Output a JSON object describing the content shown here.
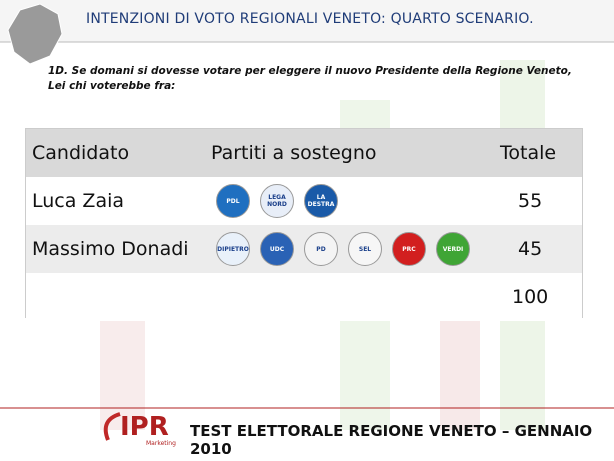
{
  "header": {
    "title": "INTENZIONI DI VOTO REGIONALI VENETO: QUARTO SCENARIO."
  },
  "question": [
    "1D. Se domani si dovesse votare per eleggere il nuovo Presidente della Regione Veneto,",
    "Lei chi voterebbe fra:"
  ],
  "table": {
    "columns": [
      "Candidato",
      "Partiti a sostegno",
      "Totale"
    ],
    "rows": [
      {
        "candidate": "Luca Zaia",
        "parties": [
          {
            "label": "PDL",
            "color": "#1f6fc0"
          },
          {
            "label": "LEGA NORD",
            "color": "#e8eef8"
          },
          {
            "label": "LA DESTRA",
            "color": "#1a5aa8"
          }
        ],
        "total": "55"
      },
      {
        "candidate": "Massimo Donadi",
        "parties": [
          {
            "label": "DIPIETRO",
            "color": "#e9f1fa"
          },
          {
            "label": "UDC",
            "color": "#2a62b5"
          },
          {
            "label": "PD",
            "color": "#f4f4f4"
          },
          {
            "label": "SEL",
            "color": "#f6f6f6"
          },
          {
            "label": "PRC",
            "color": "#d21f1f"
          },
          {
            "label": "VERDI",
            "color": "#3fa535"
          }
        ],
        "total": "45"
      }
    ],
    "grand_total": "100"
  },
  "footer": {
    "logo": "IPR",
    "logo_sub": "Marketing",
    "text": "TEST ELETTORALE REGIONE VENETO – GENNAIO 2010"
  }
}
